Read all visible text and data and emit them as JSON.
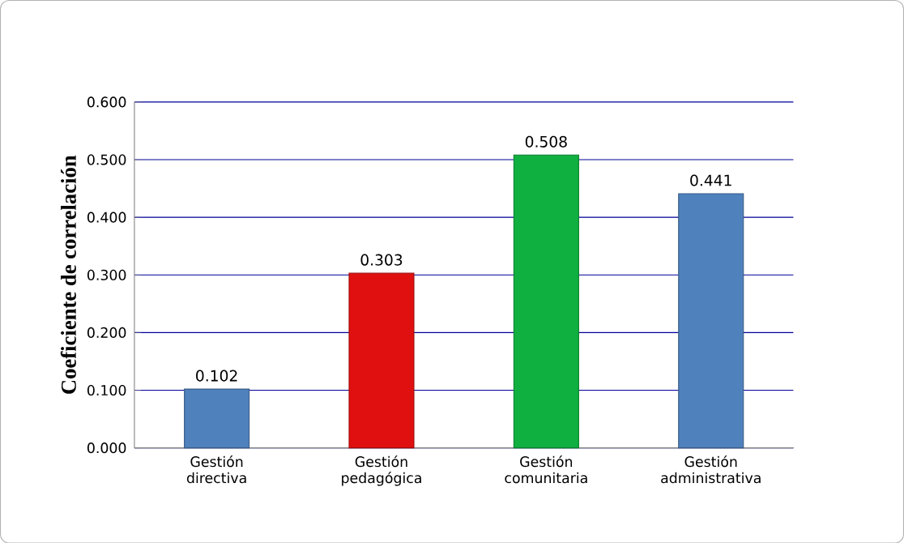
{
  "chart_data": {
    "type": "bar",
    "ylabel": "Coeficiente de correlación",
    "categories": [
      "Gestión directiva",
      "Gestión pedagógica",
      "Gestión comunitaria",
      "Gestión administrativa"
    ],
    "values": [
      0.102,
      0.303,
      0.508,
      0.441
    ],
    "colors": [
      "#4f81bd",
      "#e01010",
      "#10b040",
      "#4f81bd"
    ],
    "ylim": [
      0,
      0.6
    ],
    "yticks": [
      {
        "value": 0,
        "label": "0.000"
      },
      {
        "value": 0.1,
        "label": "0.100"
      },
      {
        "value": 0.2,
        "label": "0.200"
      },
      {
        "value": 0.3,
        "label": "0.300"
      },
      {
        "value": 0.4,
        "label": "0.400"
      },
      {
        "value": 0.5,
        "label": "0.500"
      },
      {
        "value": 0.6,
        "label": "0.600"
      }
    ],
    "grid": "y",
    "data_labels": true
  }
}
